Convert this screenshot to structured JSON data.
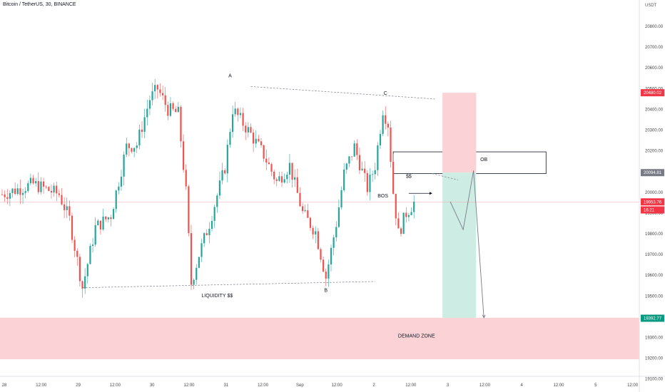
{
  "header": {
    "symbol": "Bitcoin / TetherUS, 30, BINANCE",
    "currency": "USDT"
  },
  "colors": {
    "up": "#26a69a",
    "down": "#ef5350",
    "grid": "#f0f3fa",
    "zone_pink": "#fbd3d7",
    "zone_green": "#cdece4",
    "last_price": "#f23645",
    "level_tag": "#787b86",
    "demand_tag": "#089981"
  },
  "chart_data": {
    "type": "candlestick",
    "symbol": "Bitcoin / TetherUS",
    "interval": "30",
    "exchange": "BINANCE",
    "ylim": [
      19060,
      20950
    ],
    "y_ticks": [
      20800,
      20700,
      20600,
      20500,
      20400,
      20300,
      20200,
      20100,
      20000,
      19900,
      19800,
      19700,
      19600,
      19500,
      19400,
      19300,
      19200,
      19100
    ],
    "x_ticks": [
      "28",
      "12:00",
      "29",
      "12:00",
      "30",
      "12:00",
      "31",
      "12:00",
      "Sep",
      "12:00",
      "2",
      "12:00",
      "3",
      "12:00",
      "4",
      "12:00",
      "5",
      "12:00"
    ],
    "grid": false,
    "price_tags": [
      {
        "label": "20480.02",
        "value": 20480.02,
        "kind": "target"
      },
      {
        "label": "20094.81",
        "value": 20094.81,
        "kind": "level"
      },
      {
        "label": "19953.76",
        "value": 19953.76,
        "kind": "last"
      },
      {
        "label": "16:21",
        "value": 19915,
        "kind": "countdown"
      },
      {
        "label": "19392.77",
        "value": 19392.77,
        "kind": "demand"
      }
    ],
    "anchors": [
      {
        "bar": 0,
        "value": 19990
      },
      {
        "bar": 12,
        "value": 20040
      },
      {
        "bar": 22,
        "value": 19990
      },
      {
        "bar": 26,
        "value": 19870
      },
      {
        "bar": 31,
        "value": 19540
      },
      {
        "bar": 36,
        "value": 19830
      },
      {
        "bar": 42,
        "value": 19890
      },
      {
        "bar": 48,
        "value": 20220
      },
      {
        "bar": 52,
        "value": 20230
      },
      {
        "bar": 57,
        "value": 20450
      },
      {
        "bar": 60,
        "value": 20500
      },
      {
        "bar": 64,
        "value": 20400
      },
      {
        "bar": 68,
        "value": 20380
      },
      {
        "bar": 71,
        "value": 20000
      },
      {
        "bar": 73,
        "value": 19560
      },
      {
        "bar": 76,
        "value": 19700
      },
      {
        "bar": 80,
        "value": 19850
      },
      {
        "bar": 86,
        "value": 20120
      },
      {
        "bar": 89,
        "value": 20400
      },
      {
        "bar": 92,
        "value": 20350
      },
      {
        "bar": 96,
        "value": 20280
      },
      {
        "bar": 101,
        "value": 20180
      },
      {
        "bar": 106,
        "value": 20050
      },
      {
        "bar": 111,
        "value": 20130
      },
      {
        "bar": 116,
        "value": 19900
      },
      {
        "bar": 121,
        "value": 19810
      },
      {
        "bar": 125,
        "value": 19590
      },
      {
        "bar": 129,
        "value": 19850
      },
      {
        "bar": 132,
        "value": 20090
      },
      {
        "bar": 136,
        "value": 20220
      },
      {
        "bar": 141,
        "value": 20020
      },
      {
        "bar": 144,
        "value": 20130
      },
      {
        "bar": 147,
        "value": 20400
      },
      {
        "bar": 149,
        "value": 20330
      },
      {
        "bar": 151,
        "value": 20000
      },
      {
        "bar": 153,
        "value": 19800
      },
      {
        "bar": 156,
        "value": 19900
      },
      {
        "bar": 159,
        "value": 19950
      }
    ],
    "annotations": [
      {
        "text": "A",
        "bar": 88,
        "value": 20555
      },
      {
        "text": "B",
        "bar": 125,
        "value": 19520
      },
      {
        "text": "C",
        "bar": 148,
        "value": 20470
      },
      {
        "text": "LIQUIDITY $$",
        "bar": 83,
        "value": 19495
      },
      {
        "text": "BOS",
        "bar": 147,
        "value": 19975
      },
      {
        "text": "$$",
        "bar": 157,
        "value": 20070
      },
      {
        "text": "OB",
        "bar": 186,
        "value": 20150
      },
      {
        "text": "DEMAND ZONE",
        "bar": 160,
        "value": 19300
      }
    ],
    "zones": [
      {
        "name": "DEMAND ZONE",
        "from": 19195,
        "to": 19395
      },
      {
        "name": "OB",
        "from": 20090,
        "to": 20195,
        "bar_from": 151,
        "bar_to": 210
      },
      {
        "name": "stop",
        "from": 20095,
        "to": 20480,
        "bar_from": 170,
        "bar_to": 183
      },
      {
        "name": "target",
        "from": 19395,
        "to": 20095,
        "bar_from": 170,
        "bar_to": 183
      }
    ]
  }
}
